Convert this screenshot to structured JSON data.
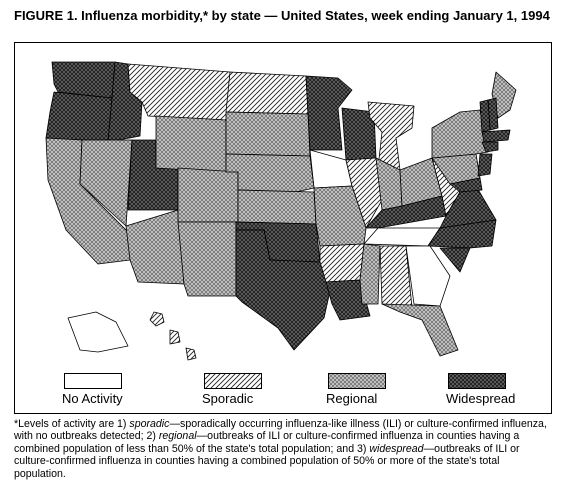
{
  "figure": {
    "title": "FIGURE 1. Influenza morbidity,* by state — United States, week ending January 1, 1994"
  },
  "legend": [
    {
      "key": "none",
      "label": "No Activity"
    },
    {
      "key": "sporadic",
      "label": "Sporadic"
    },
    {
      "key": "regional",
      "label": "Regional"
    },
    {
      "key": "widespread",
      "label": "Widespread"
    }
  ],
  "levels": {
    "none": {
      "pattern": "white"
    },
    "sporadic": {
      "pattern": "diagonal-hatch"
    },
    "regional": {
      "pattern": "light-crosshatch"
    },
    "widespread": {
      "pattern": "dense-crosshatch"
    }
  },
  "states": [
    {
      "name": "WA",
      "level": "widespread"
    },
    {
      "name": "OR",
      "level": "widespread"
    },
    {
      "name": "ID",
      "level": "widespread"
    },
    {
      "name": "MT",
      "level": "sporadic"
    },
    {
      "name": "ND",
      "level": "sporadic"
    },
    {
      "name": "MN",
      "level": "widespread"
    },
    {
      "name": "WI",
      "level": "widespread"
    },
    {
      "name": "MI",
      "level": "sporadic"
    },
    {
      "name": "CA",
      "level": "regional"
    },
    {
      "name": "NV",
      "level": "regional"
    },
    {
      "name": "UT",
      "level": "widespread"
    },
    {
      "name": "WY",
      "level": "regional"
    },
    {
      "name": "SD",
      "level": "regional"
    },
    {
      "name": "IA",
      "level": "none"
    },
    {
      "name": "IL",
      "level": "sporadic"
    },
    {
      "name": "IN",
      "level": "regional"
    },
    {
      "name": "OH",
      "level": "regional"
    },
    {
      "name": "AZ",
      "level": "regional"
    },
    {
      "name": "CO",
      "level": "regional"
    },
    {
      "name": "NE",
      "level": "regional"
    },
    {
      "name": "KS",
      "level": "regional"
    },
    {
      "name": "MO",
      "level": "regional"
    },
    {
      "name": "KY",
      "level": "widespread"
    },
    {
      "name": "WV",
      "level": "sporadic"
    },
    {
      "name": "VA",
      "level": "widespread"
    },
    {
      "name": "NM",
      "level": "regional"
    },
    {
      "name": "OK",
      "level": "widespread"
    },
    {
      "name": "TX",
      "level": "widespread"
    },
    {
      "name": "AR",
      "level": "sporadic"
    },
    {
      "name": "TN",
      "level": "none"
    },
    {
      "name": "NC",
      "level": "widespread"
    },
    {
      "name": "SC",
      "level": "widespread"
    },
    {
      "name": "LA",
      "level": "widespread"
    },
    {
      "name": "MS",
      "level": "regional"
    },
    {
      "name": "AL",
      "level": "sporadic"
    },
    {
      "name": "GA",
      "level": "none"
    },
    {
      "name": "FL",
      "level": "regional"
    },
    {
      "name": "PA",
      "level": "regional"
    },
    {
      "name": "NY",
      "level": "regional"
    },
    {
      "name": "ME",
      "level": "regional"
    },
    {
      "name": "NH",
      "level": "widespread"
    },
    {
      "name": "VT",
      "level": "widespread"
    },
    {
      "name": "MA",
      "level": "widespread"
    },
    {
      "name": "CT",
      "level": "widespread"
    },
    {
      "name": "NJ",
      "level": "widespread"
    },
    {
      "name": "MD",
      "level": "widespread"
    },
    {
      "name": "AK",
      "level": "none"
    },
    {
      "name": "HI",
      "level": "sporadic"
    }
  ],
  "footnote": {
    "marker": "*",
    "t1": "Levels of activity are 1) ",
    "sporadic_term": "sporadic",
    "t2": "—sporadically occurring influenza-like illness (ILI) or culture-confirmed influenza, with no outbreaks detected; 2) ",
    "regional_term": "regional",
    "t3": "—outbreaks of ILI or culture-confirmed influenza in counties having a combined population of less than 50% of the state's total population; and 3) ",
    "widespread_term": "widespread",
    "t4": "—outbreaks of ILI or culture-confirmed influenza in counties having a combined population of 50% or more of the state's total population."
  }
}
